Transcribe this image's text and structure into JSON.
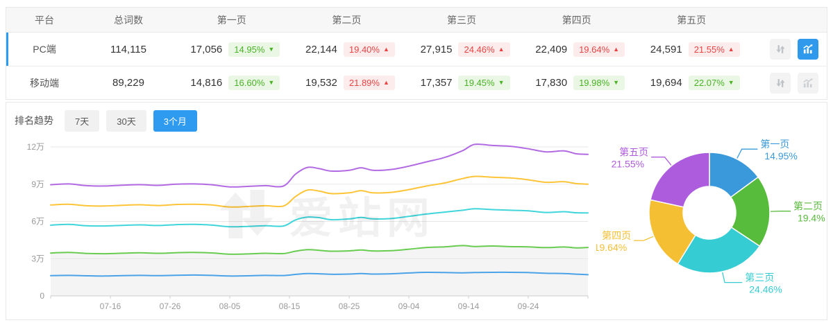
{
  "table": {
    "columns": [
      "平台",
      "总词数",
      "第一页",
      "第二页",
      "第三页",
      "第四页",
      "第五页"
    ],
    "rows": [
      {
        "platform": "PC端",
        "total": "114,115",
        "selected": true,
        "chart_active": true,
        "pages": [
          {
            "count": "17,056",
            "pct": "14.95%",
            "dir": "down"
          },
          {
            "count": "22,144",
            "pct": "19.40%",
            "dir": "up"
          },
          {
            "count": "27,915",
            "pct": "24.46%",
            "dir": "up"
          },
          {
            "count": "22,409",
            "pct": "19.64%",
            "dir": "up"
          },
          {
            "count": "24,591",
            "pct": "21.55%",
            "dir": "up"
          }
        ]
      },
      {
        "platform": "移动端",
        "total": "89,229",
        "selected": false,
        "chart_active": false,
        "pages": [
          {
            "count": "14,816",
            "pct": "16.60%",
            "dir": "down"
          },
          {
            "count": "19,532",
            "pct": "21.89%",
            "dir": "up"
          },
          {
            "count": "17,357",
            "pct": "19.45%",
            "dir": "down"
          },
          {
            "count": "17,830",
            "pct": "19.98%",
            "dir": "down"
          },
          {
            "count": "19,694",
            "pct": "22.07%",
            "dir": "down"
          }
        ]
      }
    ]
  },
  "trend": {
    "title": "排名趋势",
    "tabs": [
      {
        "label": "7天",
        "active": false
      },
      {
        "label": "30天",
        "active": false
      },
      {
        "label": "3个月",
        "active": true
      }
    ]
  },
  "watermark": {
    "text": "爱站网"
  },
  "icons": {
    "arrow_up": "▲",
    "arrow_down": "▼"
  },
  "colors": {
    "accent_blue": "#2e9bf0",
    "row_accent": "#2b9cf2",
    "badge_green_bg": "#eaf7e4",
    "badge_green_text": "#49b326",
    "badge_red_bg": "#fdecec",
    "badge_red_text": "#e84444",
    "grid": "#e7e7e7",
    "axis": "#cccccc",
    "tick_text": "#999999",
    "area_fill": "#f4f4f4"
  },
  "chart_data": [
    {
      "type": "line",
      "title": "排名趋势 3个月 (cumulative keyword counts, PC端)",
      "ylim": [
        0,
        12
      ],
      "y_unit": "万",
      "y_ticks": [
        {
          "v": 0,
          "label": "0"
        },
        {
          "v": 3,
          "label": "3万"
        },
        {
          "v": 6,
          "label": "6万"
        },
        {
          "v": 9,
          "label": "9万"
        },
        {
          "v": 12,
          "label": "12万"
        }
      ],
      "x_ticks": [
        {
          "day": 0,
          "label": ""
        },
        {
          "day": 10,
          "label": "07-16"
        },
        {
          "day": 20,
          "label": "07-26"
        },
        {
          "day": 30,
          "label": "08-05"
        },
        {
          "day": 40,
          "label": "08-15"
        },
        {
          "day": 50,
          "label": "08-25"
        },
        {
          "day": 60,
          "label": "09-04"
        },
        {
          "day": 70,
          "label": "09-14"
        },
        {
          "day": 80,
          "label": "09-24"
        },
        {
          "day": 90,
          "label": ""
        }
      ],
      "days": [
        0,
        3,
        6,
        9,
        12,
        15,
        18,
        21,
        24,
        27,
        30,
        33,
        36,
        39,
        41,
        43,
        45,
        47,
        50,
        52,
        54,
        57,
        60,
        63,
        66,
        69,
        71,
        74,
        77,
        80,
        83,
        86,
        88,
        90
      ],
      "series": [
        {
          "name": "purple",
          "color": "#b26ae2",
          "values": [
            8.95,
            9.02,
            8.88,
            8.85,
            8.92,
            8.96,
            8.9,
            9.0,
            9.02,
            8.95,
            8.78,
            8.82,
            8.88,
            8.85,
            9.8,
            10.35,
            10.25,
            10.05,
            10.12,
            10.32,
            10.12,
            10.18,
            10.45,
            10.8,
            11.15,
            11.7,
            12.2,
            12.12,
            12.05,
            11.85,
            11.6,
            11.68,
            11.45,
            11.4
          ]
        },
        {
          "name": "yellow",
          "color": "#fcc436",
          "values": [
            7.32,
            7.38,
            7.26,
            7.24,
            7.3,
            7.34,
            7.28,
            7.36,
            7.38,
            7.32,
            7.16,
            7.2,
            7.26,
            7.24,
            8.0,
            8.52,
            8.44,
            8.24,
            8.3,
            8.48,
            8.3,
            8.34,
            8.56,
            8.85,
            9.1,
            9.45,
            9.62,
            9.56,
            9.5,
            9.35,
            9.15,
            9.2,
            9.05,
            9.0
          ]
        },
        {
          "name": "cyan",
          "color": "#40d5da",
          "values": [
            5.7,
            5.76,
            5.65,
            5.63,
            5.68,
            5.72,
            5.67,
            5.74,
            5.76,
            5.7,
            5.57,
            5.6,
            5.65,
            5.63,
            6.12,
            6.35,
            6.3,
            6.14,
            6.2,
            6.32,
            6.2,
            6.23,
            6.4,
            6.6,
            6.75,
            6.9,
            7.02,
            6.95,
            6.9,
            6.85,
            6.72,
            6.78,
            6.7,
            6.68
          ]
        },
        {
          "name": "green",
          "color": "#68cc50",
          "area": "#f4f4f4",
          "values": [
            3.45,
            3.5,
            3.42,
            3.4,
            3.44,
            3.47,
            3.43,
            3.48,
            3.5,
            3.46,
            3.36,
            3.38,
            3.43,
            3.41,
            3.6,
            3.72,
            3.67,
            3.6,
            3.63,
            3.7,
            3.62,
            3.64,
            3.76,
            3.9,
            3.95,
            4.05,
            3.98,
            4.02,
            3.97,
            3.95,
            3.89,
            3.94,
            3.87,
            3.9
          ]
        },
        {
          "name": "blue",
          "color": "#4aa3e8",
          "values": [
            1.63,
            1.65,
            1.62,
            1.6,
            1.63,
            1.65,
            1.63,
            1.66,
            1.68,
            1.65,
            1.6,
            1.62,
            1.65,
            1.64,
            1.73,
            1.8,
            1.78,
            1.74,
            1.76,
            1.8,
            1.76,
            1.78,
            1.85,
            1.9,
            1.88,
            1.86,
            1.88,
            1.9,
            1.9,
            1.88,
            1.82,
            1.8,
            1.75,
            1.71
          ]
        }
      ]
    },
    {
      "type": "pie",
      "donut": true,
      "label_position": "outside",
      "slices": [
        {
          "label": "第一页",
          "value": 14.95,
          "display": "14.95%",
          "color": "#3a99da"
        },
        {
          "label": "第二页",
          "value": 19.4,
          "display": "19.4%",
          "color": "#57bb3b"
        },
        {
          "label": "第三页",
          "value": 24.46,
          "display": "24.46%",
          "color": "#36ccd3"
        },
        {
          "label": "第四页",
          "value": 19.64,
          "display": "19.64%",
          "color": "#f5bf33"
        },
        {
          "label": "第五页",
          "value": 21.55,
          "display": "21.55%",
          "color": "#ad5cdd"
        }
      ]
    }
  ]
}
